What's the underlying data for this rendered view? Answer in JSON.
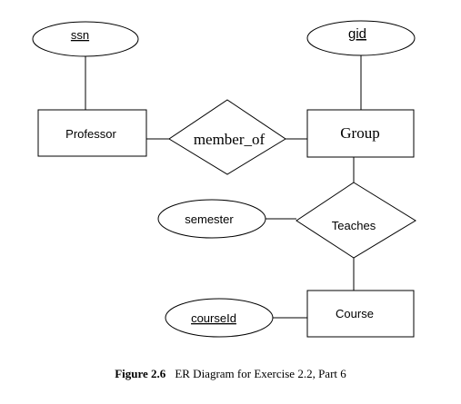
{
  "diagram": {
    "attributes": {
      "ssn": "ssn",
      "gid": "gid",
      "semester": "semester",
      "courseid": "courseId"
    },
    "entities": {
      "professor": "Professor",
      "group": "Group",
      "course": "Course"
    },
    "relationships": {
      "member_of": "member_of",
      "teaches": "Teaches"
    }
  },
  "caption": {
    "number": "Figure 2.6",
    "text": "ER Diagram for Exercise 2.2, Part 6"
  }
}
